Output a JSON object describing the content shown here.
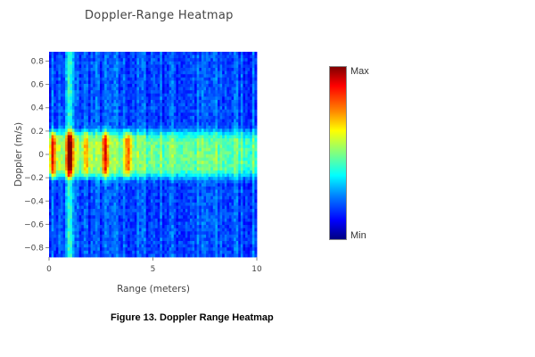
{
  "chart_data": {
    "type": "heatmap",
    "title": "Doppler-Range Heatmap",
    "xlabel": "Range (meters)",
    "ylabel": "Doppler (m/s)",
    "xlim": [
      0,
      10
    ],
    "ylim": [
      -0.88,
      0.88
    ],
    "x_ticks": [
      0,
      5,
      10
    ],
    "y_ticks": [
      0.8,
      0.6,
      0.4,
      0.2,
      0,
      -0.2,
      -0.4,
      -0.6,
      -0.8
    ],
    "colorscale": "jet",
    "colorbar": {
      "max_label": "Max",
      "min_label": "Min"
    },
    "intensity_peaks": [
      {
        "range": 0.2,
        "doppler": 0,
        "level": "high"
      },
      {
        "range": 1.0,
        "doppler": 0,
        "level": "max"
      },
      {
        "range": 1.8,
        "doppler": 0,
        "level": "medium"
      },
      {
        "range": 2.7,
        "doppler": 0,
        "level": "high"
      },
      {
        "range": 3.8,
        "doppler": 0,
        "level": "high"
      }
    ],
    "clutter_band_doppler": [
      -0.2,
      0.2
    ]
  },
  "caption": "Figure 13. Doppler Range Heatmap"
}
